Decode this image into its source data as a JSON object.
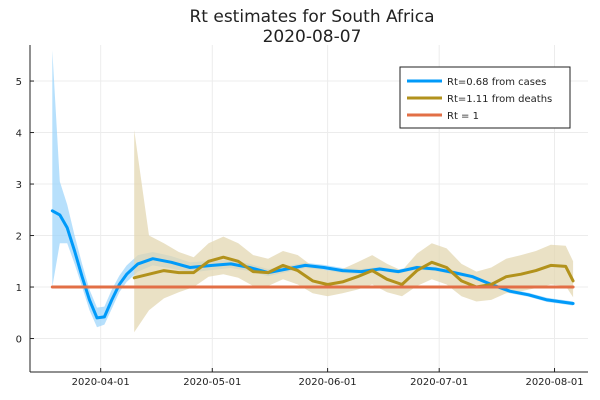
{
  "chart_data": {
    "type": "line",
    "title": "Rt estimates for South Africa",
    "subtitle": "2020-08-07",
    "xlabel": "",
    "ylabel": "",
    "x_ticks": [
      "2020-04-01",
      "2020-05-01",
      "2020-06-01",
      "2020-07-01",
      "2020-08-01"
    ],
    "y_ticks": [
      0,
      1,
      2,
      3,
      4,
      5
    ],
    "xlim": [
      "2020-03-13",
      "2020-08-10"
    ],
    "ylim": [
      -0.65,
      5.7
    ],
    "grid": true,
    "legend_position": "top-right",
    "series": [
      {
        "name": "Rt=0.68 from cases",
        "color": "#009af9",
        "band_color": "#9fd6fb",
        "x": [
          "2020-03-19",
          "2020-03-21",
          "2020-03-23",
          "2020-03-25",
          "2020-03-27",
          "2020-03-29",
          "2020-03-31",
          "2020-04-02",
          "2020-04-04",
          "2020-04-06",
          "2020-04-08",
          "2020-04-11",
          "2020-04-15",
          "2020-04-20",
          "2020-04-25",
          "2020-05-01",
          "2020-05-06",
          "2020-05-11",
          "2020-05-16",
          "2020-05-21",
          "2020-05-26",
          "2020-05-31",
          "2020-06-05",
          "2020-06-10",
          "2020-06-15",
          "2020-06-20",
          "2020-06-25",
          "2020-06-30",
          "2020-07-05",
          "2020-07-10",
          "2020-07-15",
          "2020-07-20",
          "2020-07-25",
          "2020-07-30",
          "2020-08-04",
          "2020-08-06"
        ],
        "y": [
          2.48,
          2.4,
          2.15,
          1.7,
          1.2,
          0.75,
          0.4,
          0.42,
          0.75,
          1.05,
          1.25,
          1.45,
          1.55,
          1.48,
          1.38,
          1.42,
          1.45,
          1.38,
          1.28,
          1.35,
          1.42,
          1.38,
          1.32,
          1.3,
          1.35,
          1.3,
          1.38,
          1.35,
          1.28,
          1.2,
          1.05,
          0.92,
          0.85,
          0.75,
          0.7,
          0.68
        ],
        "lower": [
          1.0,
          1.85,
          1.85,
          1.45,
          1.0,
          0.55,
          0.22,
          0.27,
          0.58,
          0.9,
          1.1,
          1.3,
          1.42,
          1.36,
          1.28,
          1.33,
          1.37,
          1.31,
          1.21,
          1.29,
          1.37,
          1.33,
          1.27,
          1.25,
          1.31,
          1.26,
          1.34,
          1.31,
          1.24,
          1.16,
          1.01,
          0.88,
          0.81,
          0.71,
          0.66,
          0.64
        ],
        "upper": [
          5.6,
          3.05,
          2.6,
          2.0,
          1.45,
          0.95,
          0.6,
          0.62,
          0.95,
          1.22,
          1.42,
          1.62,
          1.68,
          1.6,
          1.48,
          1.51,
          1.53,
          1.45,
          1.35,
          1.41,
          1.47,
          1.43,
          1.37,
          1.35,
          1.39,
          1.34,
          1.42,
          1.39,
          1.32,
          1.24,
          1.09,
          0.96,
          0.89,
          0.79,
          0.74,
          0.72
        ]
      },
      {
        "name": "Rt=1.11 from deaths",
        "color": "#b2921c",
        "band_color": "#e3d7b1",
        "x": [
          "2020-04-10",
          "2020-04-14",
          "2020-04-18",
          "2020-04-22",
          "2020-04-26",
          "2020-04-30",
          "2020-05-04",
          "2020-05-08",
          "2020-05-12",
          "2020-05-16",
          "2020-05-20",
          "2020-05-24",
          "2020-05-28",
          "2020-06-01",
          "2020-06-05",
          "2020-06-09",
          "2020-06-13",
          "2020-06-17",
          "2020-06-21",
          "2020-06-25",
          "2020-06-29",
          "2020-07-03",
          "2020-07-07",
          "2020-07-11",
          "2020-07-15",
          "2020-07-19",
          "2020-07-23",
          "2020-07-27",
          "2020-07-31",
          "2020-08-04",
          "2020-08-06"
        ],
        "y": [
          1.18,
          1.25,
          1.32,
          1.28,
          1.28,
          1.5,
          1.58,
          1.5,
          1.3,
          1.28,
          1.42,
          1.32,
          1.12,
          1.05,
          1.1,
          1.2,
          1.32,
          1.15,
          1.05,
          1.32,
          1.48,
          1.38,
          1.12,
          1.0,
          1.05,
          1.2,
          1.25,
          1.32,
          1.42,
          1.4,
          1.12
        ],
        "lower": [
          0.12,
          0.55,
          0.78,
          0.9,
          1.0,
          1.2,
          1.25,
          1.18,
          1.02,
          1.02,
          1.15,
          1.05,
          0.88,
          0.82,
          0.88,
          0.95,
          1.05,
          0.9,
          0.82,
          1.02,
          1.15,
          1.05,
          0.82,
          0.72,
          0.75,
          0.88,
          0.92,
          0.98,
          1.05,
          1.02,
          0.8
        ],
        "upper": [
          4.05,
          2.0,
          1.85,
          1.68,
          1.58,
          1.85,
          1.98,
          1.85,
          1.62,
          1.55,
          1.7,
          1.62,
          1.4,
          1.32,
          1.35,
          1.48,
          1.62,
          1.45,
          1.32,
          1.65,
          1.85,
          1.75,
          1.45,
          1.3,
          1.38,
          1.55,
          1.62,
          1.7,
          1.82,
          1.8,
          1.5
        ]
      },
      {
        "name": "Rt = 1",
        "color": "#e26f46",
        "x": [
          "2020-03-19",
          "2020-08-06"
        ],
        "y": [
          1,
          1
        ]
      }
    ]
  }
}
